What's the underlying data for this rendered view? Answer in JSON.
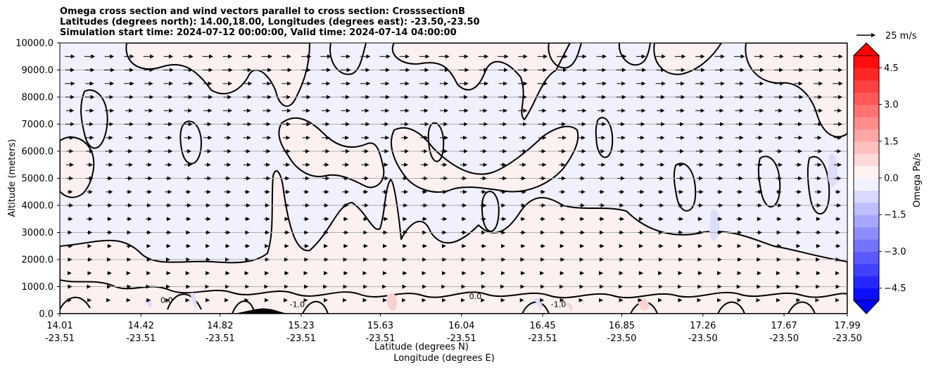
{
  "chart_data": {
    "type": "heatmap",
    "title_lines": [
      "Omega cross section and wind vectors parallel to cross section: CrosssectionB",
      "Latitudes (degrees north): 14.00,18.00, Longitudes (degrees east): -23.50,-23.50",
      "Simulation start time: 2024-07-12 00:00:00, Valid time: 2024-07-14 04:00:00"
    ],
    "ylabel": "Altitude (meters)",
    "xlabel_1": "Latitude (degrees N)",
    "xlabel_2": "Longitude (degrees E)",
    "ylim": [
      0,
      10000
    ],
    "y_ticks": [
      {
        "value": 0,
        "label": "0.0"
      },
      {
        "value": 1000,
        "label": "1000.0"
      },
      {
        "value": 2000,
        "label": "2000.0"
      },
      {
        "value": 3000,
        "label": "3000.0"
      },
      {
        "value": 4000,
        "label": "4000.0"
      },
      {
        "value": 5000,
        "label": "5000.0"
      },
      {
        "value": 6000,
        "label": "6000.0"
      },
      {
        "value": 7000,
        "label": "7000.0"
      },
      {
        "value": 8000,
        "label": "8000.0"
      },
      {
        "value": 9000,
        "label": "9000.0"
      },
      {
        "value": 10000,
        "label": "10000.0"
      }
    ],
    "x_ticks": [
      {
        "lat": "14.01",
        "lon": "-23.51"
      },
      {
        "lat": "14.42",
        "lon": "-23.51"
      },
      {
        "lat": "14.82",
        "lon": "-23.51"
      },
      {
        "lat": "15.23",
        "lon": "-23.51"
      },
      {
        "lat": "15.63",
        "lon": "-23.51"
      },
      {
        "lat": "16.04",
        "lon": "-23.51"
      },
      {
        "lat": "16.45",
        "lon": "-23.51"
      },
      {
        "lat": "16.85",
        "lon": "-23.50"
      },
      {
        "lat": "17.26",
        "lon": "-23.50"
      },
      {
        "lat": "17.67",
        "lon": "-23.50"
      },
      {
        "lat": "17.99",
        "lon": "-23.50"
      }
    ],
    "grid": "horizontal",
    "colorbar": {
      "label": "Omega Pa/s",
      "min": -5.0,
      "max": 5.0,
      "levels": 20,
      "tick_values": [
        -4.5,
        -3.0,
        -1.5,
        0.0,
        1.5,
        3.0,
        4.5
      ],
      "tick_labels": [
        "−4.5",
        "−3.0",
        "−1.5",
        "0.0",
        "1.5",
        "3.0",
        "4.5"
      ],
      "colormap": "bwr",
      "extend": "both",
      "min_color": "#0000ff",
      "max_color": "#ff0000"
    },
    "quiver_key_label": "25 m/s",
    "contour_labels": [
      {
        "text": "0.0",
        "lat": 14.55,
        "alt": 400
      },
      {
        "text": "-1.0",
        "lat": 15.21,
        "alt": 250
      },
      {
        "text": "0.0",
        "lat": 16.11,
        "alt": 550
      },
      {
        "text": "-1.0",
        "lat": 16.53,
        "alt": 250
      }
    ],
    "terrain_color": "#000000",
    "terrain": [
      {
        "lat": 14.89,
        "alt": 0
      },
      {
        "lat": 14.95,
        "alt": 90
      },
      {
        "lat": 15.0,
        "alt": 170
      },
      {
        "lat": 15.04,
        "alt": 200
      },
      {
        "lat": 15.08,
        "alt": 170
      },
      {
        "lat": 15.12,
        "alt": 80
      },
      {
        "lat": 15.16,
        "alt": 0
      }
    ]
  }
}
